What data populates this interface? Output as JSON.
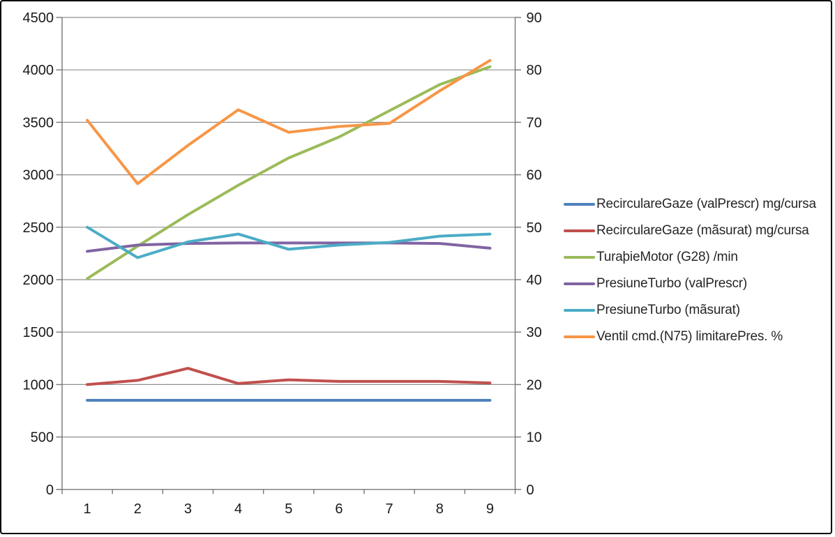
{
  "window": {
    "background": "#ffffff",
    "border_color": "#000000"
  },
  "chart_data": {
    "type": "line",
    "title": "",
    "xlabel": "",
    "ylabel": "",
    "grid": true,
    "legend_position": "right",
    "categories": [
      1,
      2,
      3,
      4,
      5,
      6,
      7,
      8,
      9
    ],
    "x_tick_labels": [
      "1",
      "2",
      "3",
      "4",
      "5",
      "6",
      "7",
      "8",
      "9"
    ],
    "left_axis": {
      "min": 0,
      "max": 4500,
      "step": 500,
      "tick_labels": [
        "0",
        "500",
        "1000",
        "1500",
        "2000",
        "2500",
        "3000",
        "3500",
        "4000",
        "4500"
      ]
    },
    "right_axis": {
      "min": 0,
      "max": 90,
      "step": 10,
      "tick_labels": [
        "0",
        "10",
        "20",
        "30",
        "40",
        "50",
        "60",
        "70",
        "80",
        "90"
      ]
    },
    "series": [
      {
        "name": "RecirculareGaze (valPrescr)  mg/cursa",
        "axis": "left",
        "color": "#4F81BD",
        "values": [
          850,
          850,
          850,
          850,
          850,
          850,
          850,
          850,
          850
        ]
      },
      {
        "name": "RecirculareGaze (mãsurat)  mg/cursa",
        "axis": "left",
        "color": "#C0504D",
        "values": [
          1000,
          1040,
          1155,
          1010,
          1045,
          1030,
          1030,
          1030,
          1015
        ]
      },
      {
        "name": "TuraþieMotor (G28)  /min",
        "axis": "left",
        "color": "#9BBB59",
        "values": [
          2010,
          2320,
          2620,
          2900,
          3160,
          3360,
          3610,
          3860,
          4030
        ]
      },
      {
        "name": "PresiuneTurbo (valPrescr)",
        "axis": "left",
        "color": "#8064A2",
        "values": [
          2270,
          2330,
          2345,
          2350,
          2350,
          2350,
          2350,
          2345,
          2300
        ]
      },
      {
        "name": "PresiuneTurbo (mãsurat)",
        "axis": "left",
        "color": "#4BACC6",
        "values": [
          2500,
          2210,
          2360,
          2435,
          2290,
          2330,
          2355,
          2415,
          2435
        ]
      },
      {
        "name": "Ventil cmd.(N75) limitarePres.  %",
        "axis": "right",
        "color": "#F79646",
        "values": [
          70.4,
          58.3,
          65.6,
          72.4,
          68.1,
          69.2,
          69.8,
          76.0,
          81.8
        ]
      }
    ],
    "styles": {
      "gridline_color": "#8e8e8e",
      "axis_color": "#767676",
      "label_color": "#1a1a1a",
      "series_line_width": 4
    }
  }
}
